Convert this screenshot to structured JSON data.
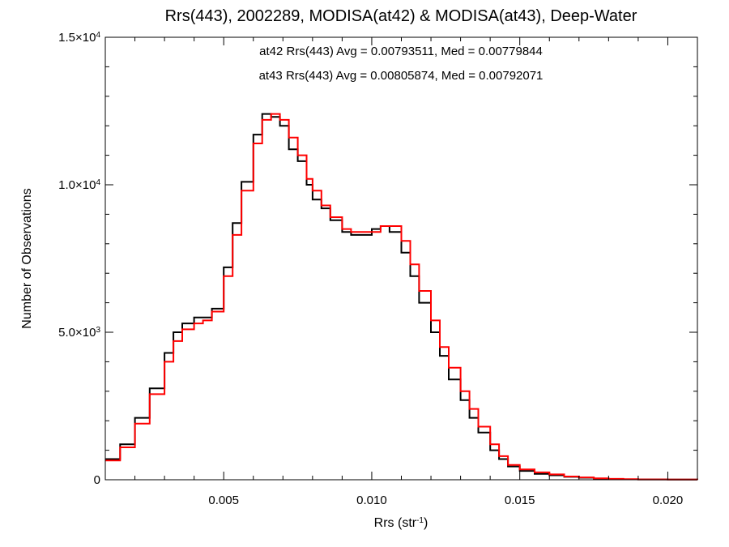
{
  "chart_data": {
    "type": "line",
    "title": "Rrs(443), 2002289, MODISA(at42) & MODISA(at43), Deep-Water",
    "xlabel_base": "Rrs (str",
    "xlabel_sup": "-1",
    "xlabel_end": ")",
    "ylabel": "Number of Observations",
    "xlim": [
      0.001,
      0.021
    ],
    "ylim": [
      0,
      15000
    ],
    "x_ticks": [
      {
        "value": 0.005,
        "label": "0.005"
      },
      {
        "value": 0.01,
        "label": "0.010"
      },
      {
        "value": 0.015,
        "label": "0.015"
      },
      {
        "value": 0.02,
        "label": "0.020"
      }
    ],
    "y_ticks": [
      {
        "value": 0,
        "mantissa": "0",
        "exp": ""
      },
      {
        "value": 5000,
        "mantissa": "5.0×10",
        "exp": "3"
      },
      {
        "value": 10000,
        "mantissa": "1.0×10",
        "exp": "4"
      },
      {
        "value": 15000,
        "mantissa": "1.5×10",
        "exp": "4"
      }
    ],
    "grid": false,
    "annotations": [
      {
        "text": "at42 Rrs(443) Avg = 0.00793511, Med = 0.00779844",
        "color": "#000000"
      },
      {
        "text": "at43 Rrs(443) Avg = 0.00805874, Med = 0.00792071",
        "color": "#ff0000"
      }
    ],
    "series": [
      {
        "color": "#000000",
        "x": [
          0.001,
          0.0015,
          0.002,
          0.0025,
          0.003,
          0.0033,
          0.0036,
          0.004,
          0.0043,
          0.0046,
          0.005,
          0.0053,
          0.0056,
          0.006,
          0.0063,
          0.0066,
          0.0069,
          0.0072,
          0.0075,
          0.0078,
          0.008,
          0.0083,
          0.0086,
          0.009,
          0.0093,
          0.0096,
          0.01,
          0.0103,
          0.0106,
          0.011,
          0.0113,
          0.0116,
          0.012,
          0.0123,
          0.0126,
          0.013,
          0.0133,
          0.0136,
          0.014,
          0.0143,
          0.0146,
          0.015,
          0.0155,
          0.016,
          0.0165,
          0.017,
          0.0175,
          0.018,
          0.0185,
          0.019,
          0.02,
          0.021
        ],
        "y": [
          700,
          1200,
          2100,
          3100,
          4300,
          5000,
          5300,
          5500,
          5500,
          5800,
          7200,
          8700,
          10100,
          11700,
          12400,
          12300,
          12000,
          11200,
          10800,
          10000,
          9500,
          9200,
          8800,
          8400,
          8300,
          8300,
          8500,
          8600,
          8400,
          7700,
          6900,
          6000,
          5000,
          4200,
          3400,
          2700,
          2100,
          1600,
          1000,
          700,
          450,
          300,
          200,
          150,
          100,
          70,
          40,
          25,
          15,
          10,
          5,
          0
        ]
      },
      {
        "color": "#ff0000",
        "x": [
          0.001,
          0.0015,
          0.002,
          0.0025,
          0.003,
          0.0033,
          0.0036,
          0.004,
          0.0043,
          0.0046,
          0.005,
          0.0053,
          0.0056,
          0.006,
          0.0063,
          0.0066,
          0.0069,
          0.0072,
          0.0075,
          0.0078,
          0.008,
          0.0083,
          0.0086,
          0.009,
          0.0093,
          0.0096,
          0.01,
          0.0103,
          0.0106,
          0.011,
          0.0113,
          0.0116,
          0.012,
          0.0123,
          0.0126,
          0.013,
          0.0133,
          0.0136,
          0.014,
          0.0143,
          0.0146,
          0.015,
          0.0155,
          0.016,
          0.0165,
          0.017,
          0.0175,
          0.018,
          0.0185,
          0.019,
          0.02,
          0.021
        ],
        "y": [
          650,
          1100,
          1900,
          2900,
          4000,
          4700,
          5100,
          5300,
          5400,
          5700,
          6900,
          8300,
          9800,
          11400,
          12200,
          12400,
          12200,
          11600,
          11000,
          10200,
          9800,
          9300,
          8900,
          8500,
          8400,
          8400,
          8400,
          8600,
          8600,
          8100,
          7300,
          6400,
          5400,
          4500,
          3800,
          3000,
          2400,
          1800,
          1200,
          800,
          500,
          350,
          250,
          180,
          110,
          80,
          50,
          30,
          18,
          12,
          6,
          0
        ]
      }
    ]
  }
}
